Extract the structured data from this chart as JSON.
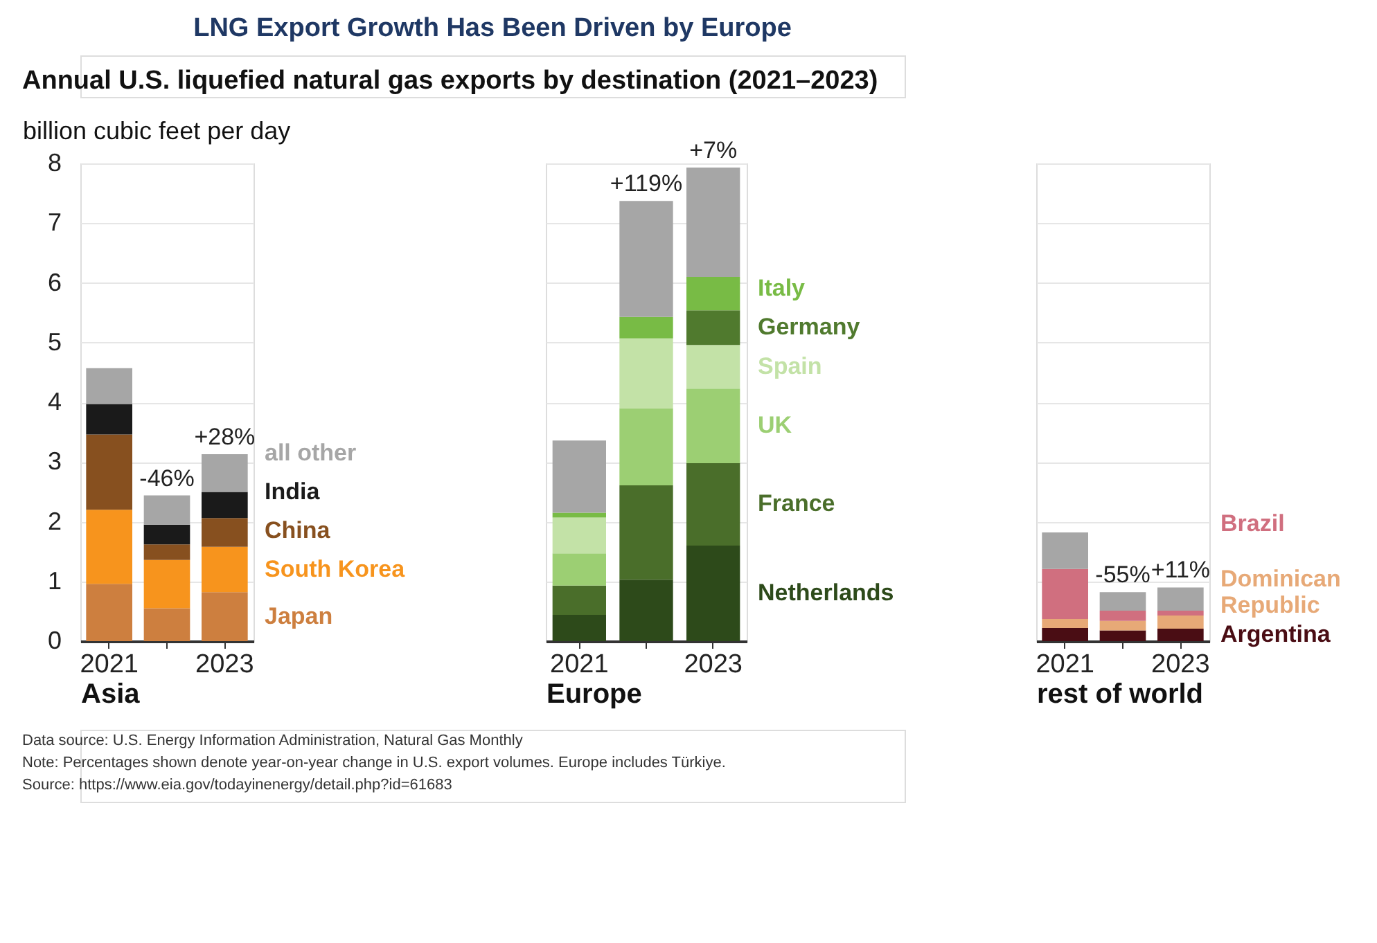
{
  "chart_data": [
    {
      "type": "other",
      "title": "LNG Export Growth Has Been Driven by Europe",
      "subtitle": "Annual U.S. liquefied natural gas exports by destination (2021–2023)",
      "annotations": [
        "Data source: U.S. Energy Information Administration, Natural Gas Monthly",
        "Note: Percentages shown denote year-on-year change in U.S. export volumes. Europe includes Türkiye.",
        "Source: https://www.eia.gov/todayinenergy/detail.php?id=61683"
      ]
    },
    {
      "type": "bar",
      "ylabel": "billion cubic feet per day",
      "xlabel": "Asia",
      "categories": [
        "2021",
        null,
        "2023"
      ],
      "stacked": true,
      "ylim": [
        0,
        8
      ],
      "yticks": [
        0,
        1,
        2,
        3,
        4,
        5,
        6,
        7,
        8
      ],
      "grid": "y",
      "series": [
        {
          "name": "Japan",
          "color": "#cd7f3f",
          "values": [
            0.96,
            0.55,
            0.82
          ]
        },
        {
          "name": "South Korea",
          "color": "#f7941d",
          "values": [
            1.24,
            0.81,
            0.76
          ]
        },
        {
          "name": "China",
          "color": "#87501f",
          "values": [
            1.26,
            0.26,
            0.48
          ]
        },
        {
          "name": "India",
          "color": "#1a1a1a",
          "values": [
            0.51,
            0.33,
            0.44
          ]
        },
        {
          "name": "all other",
          "color": "#a6a6a6",
          "values": [
            0.6,
            0.49,
            0.63
          ]
        }
      ],
      "annotations": [
        {
          "text": "-46%",
          "y": 2.44
        },
        {
          "text": "+28%",
          "x": "2023",
          "y": 3.13
        }
      ]
    },
    {
      "type": "bar",
      "xlabel": "Europe",
      "categories": [
        "2021",
        null,
        "2023"
      ],
      "stacked": true,
      "ylim": [
        0,
        8
      ],
      "yticks": [
        0,
        1,
        2,
        3,
        4,
        5,
        6,
        7,
        8
      ],
      "grid": "y",
      "tick_labels": "x",
      "series": [
        {
          "name": "Netherlands",
          "color": "#2d4a1a",
          "values": [
            0.44,
            1.03,
            1.6
          ]
        },
        {
          "name": "France",
          "color": "#4a6e2a",
          "values": [
            0.49,
            1.58,
            1.38
          ]
        },
        {
          "name": "UK",
          "color": "#9ccf73",
          "values": [
            0.54,
            1.29,
            1.25
          ]
        },
        {
          "name": "Spain",
          "color": "#c3e2a7",
          "values": [
            0.6,
            1.17,
            0.73
          ]
        },
        {
          "name": "Germany",
          "color": "#507a2e",
          "values": [
            0,
            0,
            0.58
          ]
        },
        {
          "name": "Italy",
          "color": "#78bb45",
          "values": [
            0.08,
            0.36,
            0.56
          ]
        },
        {
          "color": "#a6a6a6",
          "values": [
            1.21,
            1.94,
            1.83
          ]
        }
      ],
      "annotations": [
        {
          "text": "+119%",
          "y": 7.37
        },
        {
          "text": "+7%",
          "x": "2023",
          "y": 7.93
        }
      ]
    },
    {
      "type": "bar",
      "xlabel": "rest of world",
      "categories": [
        "2021",
        null,
        "2023"
      ],
      "stacked": true,
      "ylim": [
        0,
        8
      ],
      "yticks": [
        0,
        1,
        2,
        3,
        4,
        5,
        6,
        7,
        8
      ],
      "grid": "y",
      "tick_labels": "x",
      "series": [
        {
          "name": "Argentina",
          "color": "#4a0d14",
          "values": [
            0.22,
            0.18,
            0.21
          ]
        },
        {
          "name": "Dominican Republic",
          "color": "#e7a977",
          "values": [
            0.15,
            0.16,
            0.22
          ]
        },
        {
          "name": "Brazil",
          "color": "#d06f7f",
          "values": [
            0.84,
            0.17,
            0.08
          ]
        },
        {
          "color": "#a6a6a6",
          "values": [
            0.61,
            0.31,
            0.39
          ]
        }
      ],
      "annotations": [
        {
          "text": "-55%",
          "y": 0.82
        },
        {
          "text": "+11%",
          "x": "2023",
          "y": 0.9
        }
      ]
    }
  ]
}
